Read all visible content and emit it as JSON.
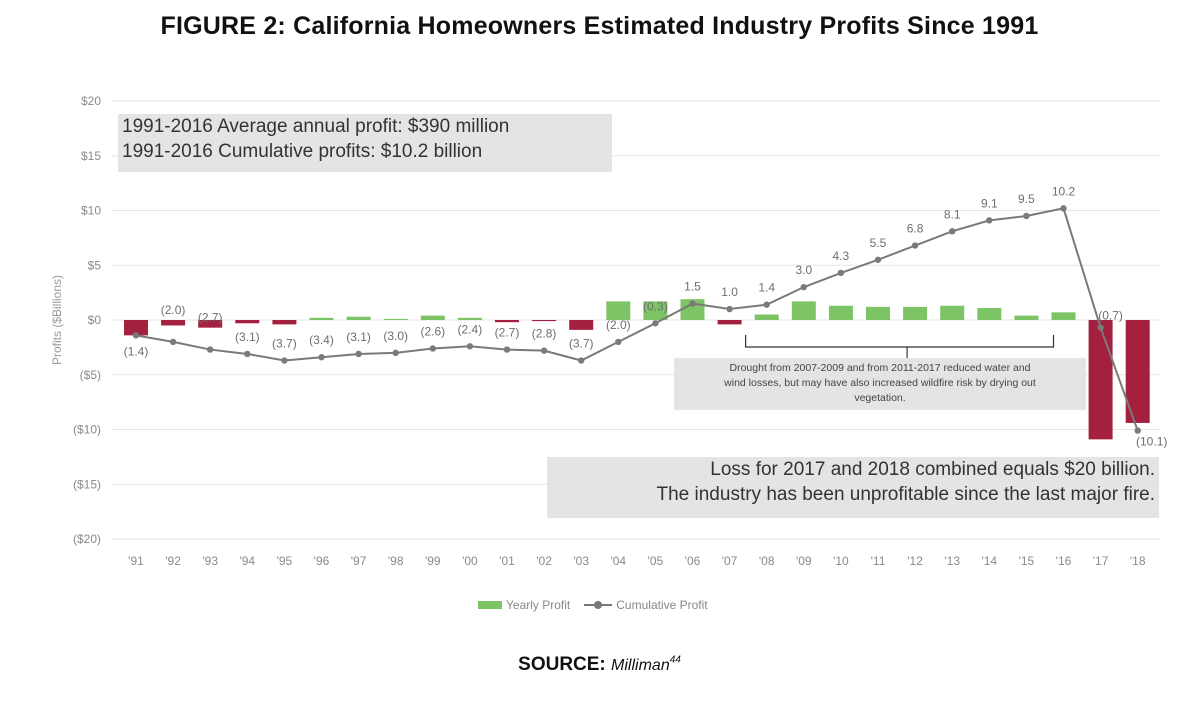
{
  "title": "FIGURE 2: California Homeowners Estimated Industry Profits Since 1991",
  "source": {
    "label": "SOURCE:",
    "name": "Milliman",
    "ref": "44"
  },
  "annotations": {
    "average_line1": "1991-2016 Average annual profit: $390 million",
    "average_line2": "1991-2016 Cumulative profits: $10.2 billion",
    "loss_line1": "Loss for 2017 and 2018 combined equals $20 billion.",
    "loss_line2": "The industry has been unprofitable since the last major fire.",
    "drought_line1": "Drought from 2007-2009 and from 2011-2017 reduced water and",
    "drought_line2": "wind losses, but may have also increased wildfire risk by drying out",
    "drought_line3": "vegetation."
  },
  "legend": {
    "yearly": "Yearly Profit",
    "cumulative": "Cumulative Profit"
  },
  "colors": {
    "positive": "#7cc466",
    "negative": "#a3213f",
    "line": "#7a7a7a",
    "grid": "#e6e6e6"
  },
  "chart_data": {
    "type": "bar",
    "title": "FIGURE 2: California Homeowners Estimated Industry Profits Since 1991",
    "ylabel": "Profits ($Billions)",
    "xlabel": "",
    "ylim": [
      -20,
      20
    ],
    "yticks": [
      20,
      15,
      10,
      5,
      0,
      -5,
      -10,
      -15,
      -20
    ],
    "ytick_labels": [
      "$20",
      "$15",
      "$10",
      "$5",
      "$0",
      "($5)",
      "($10)",
      "($15)",
      "($20)"
    ],
    "categories": [
      "'91",
      "'92",
      "'93",
      "'94",
      "'95",
      "'96",
      "'97",
      "'98",
      "'99",
      "'00",
      "'01",
      "'02",
      "'03",
      "'04",
      "'05",
      "'06",
      "'07",
      "'08",
      "'09",
      "'10",
      "'11",
      "'12",
      "'13",
      "'14",
      "'15",
      "'16",
      "'17",
      "'18"
    ],
    "series": [
      {
        "name": "Yearly Profit",
        "type": "bar",
        "values": [
          -1.4,
          -0.5,
          -0.7,
          -0.3,
          -0.4,
          0.2,
          0.3,
          0.1,
          0.4,
          0.2,
          -0.2,
          -0.1,
          -0.9,
          1.7,
          1.7,
          1.9,
          -0.4,
          0.5,
          1.7,
          1.3,
          1.2,
          1.2,
          1.3,
          1.1,
          0.4,
          0.7,
          -10.9,
          -9.4
        ]
      },
      {
        "name": "Cumulative Profit",
        "type": "line",
        "values": [
          -1.4,
          -2.0,
          -2.7,
          -3.1,
          -3.7,
          -3.4,
          -3.1,
          -3.0,
          -2.6,
          -2.4,
          -2.7,
          -2.8,
          -3.7,
          -2.0,
          -0.3,
          1.5,
          1.0,
          1.4,
          3.0,
          4.3,
          5.5,
          6.8,
          8.1,
          9.1,
          9.5,
          10.2,
          -0.7,
          -10.1
        ],
        "labels": [
          "(1.4)",
          "(2.0)",
          "(2.7)",
          "(3.1)",
          "(3.7)",
          "(3.4)",
          "(3.1)",
          "(3.0)",
          "(2.6)",
          "(2.4)",
          "(2.7)",
          "(2.8)",
          "(3.7)",
          "(2.0)",
          "(0.3)",
          "1.5",
          "1.0",
          "1.4",
          "3.0",
          "4.3",
          "5.5",
          "6.8",
          "8.1",
          "9.1",
          "9.5",
          "10.2",
          "(0.7)",
          "(10.1)"
        ]
      }
    ],
    "legend_position": "bottom-center",
    "grid": true
  }
}
